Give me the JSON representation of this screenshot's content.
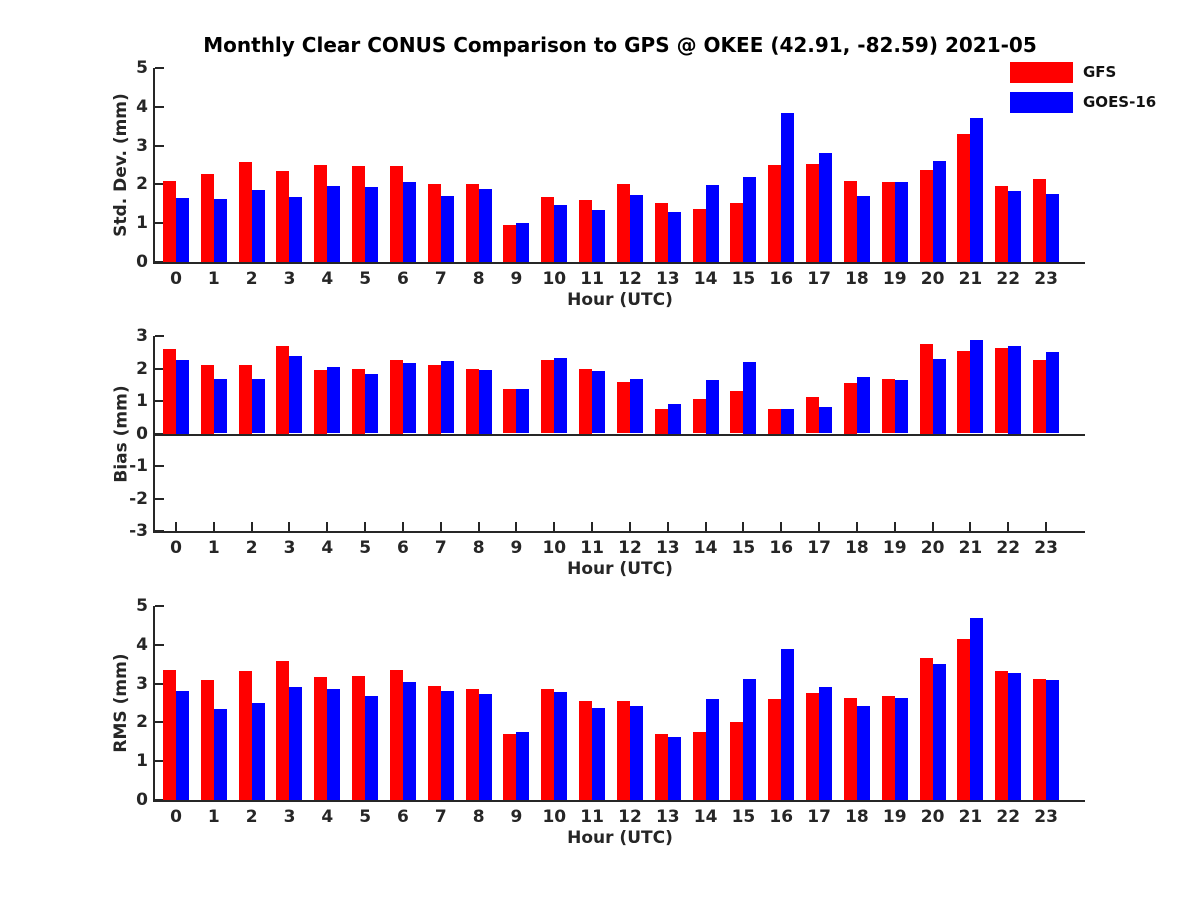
{
  "figure": {
    "title": "Monthly Clear CONUS Comparison to GPS @ OKEE (42.91, -82.59) 2021-05",
    "background": "#ffffff",
    "axis_color": "#262626",
    "text_color": "#262626"
  },
  "legend": {
    "position": "top-right",
    "entries": [
      {
        "label": "GFS",
        "color": "#ff0000"
      },
      {
        "label": "GOES-16",
        "color": "#0000ff"
      }
    ]
  },
  "chart_data": [
    {
      "type": "bar",
      "panel": "std-dev",
      "title": "",
      "xlabel": "Hour (UTC)",
      "ylabel": "Std. Dev. (mm)",
      "ylim": [
        0,
        5
      ],
      "yticks": [
        0,
        1,
        2,
        3,
        4,
        5
      ],
      "grid": false,
      "categories": [
        "0",
        "1",
        "2",
        "3",
        "4",
        "5",
        "6",
        "7",
        "8",
        "9",
        "10",
        "11",
        "12",
        "13",
        "14",
        "15",
        "16",
        "17",
        "18",
        "19",
        "20",
        "21",
        "22",
        "23"
      ],
      "series": [
        {
          "name": "GFS",
          "color": "#ff0000",
          "values": [
            2.1,
            2.26,
            2.57,
            2.35,
            2.5,
            2.47,
            2.47,
            2.02,
            2.01,
            0.95,
            1.68,
            1.59,
            2.0,
            1.52,
            1.37,
            1.53,
            2.5,
            2.52,
            2.09,
            2.05,
            2.38,
            3.29,
            1.96,
            2.13
          ]
        },
        {
          "name": "GOES-16",
          "color": "#0000ff",
          "values": [
            1.65,
            1.62,
            1.85,
            1.68,
            1.97,
            1.93,
            2.07,
            1.7,
            1.87,
            1.0,
            1.48,
            1.33,
            1.72,
            1.3,
            1.99,
            2.18,
            3.85,
            2.82,
            1.7,
            2.06,
            2.61,
            3.7,
            1.83,
            1.76
          ]
        }
      ]
    },
    {
      "type": "bar",
      "panel": "bias",
      "title": "",
      "xlabel": "Hour (UTC)",
      "ylabel": "Bias (mm)",
      "ylim": [
        -3,
        3
      ],
      "yticks": [
        -3,
        -2,
        -1,
        0,
        1,
        2,
        3
      ],
      "grid": false,
      "categories": [
        "0",
        "1",
        "2",
        "3",
        "4",
        "5",
        "6",
        "7",
        "8",
        "9",
        "10",
        "11",
        "12",
        "13",
        "14",
        "15",
        "16",
        "17",
        "18",
        "19",
        "20",
        "21",
        "22",
        "23"
      ],
      "series": [
        {
          "name": "GFS",
          "color": "#ff0000",
          "values": [
            2.6,
            2.1,
            2.1,
            2.7,
            1.95,
            2.0,
            2.25,
            2.1,
            2.0,
            1.38,
            2.27,
            2.0,
            1.57,
            0.75,
            1.06,
            1.32,
            0.75,
            1.12,
            1.55,
            1.69,
            2.75,
            2.54,
            2.63,
            2.27
          ]
        },
        {
          "name": "GOES-16",
          "color": "#0000ff",
          "values": [
            2.25,
            1.68,
            1.68,
            2.38,
            2.06,
            1.82,
            2.18,
            2.22,
            1.95,
            1.38,
            2.33,
            1.93,
            1.68,
            0.9,
            1.65,
            2.2,
            0.75,
            0.82,
            1.73,
            1.66,
            2.3,
            2.88,
            2.7,
            2.52
          ]
        }
      ]
    },
    {
      "type": "bar",
      "panel": "rms",
      "title": "",
      "xlabel": "Hour (UTC)",
      "ylabel": "RMS (mm)",
      "ylim": [
        0,
        5
      ],
      "yticks": [
        0,
        1,
        2,
        3,
        4,
        5
      ],
      "grid": false,
      "categories": [
        "0",
        "1",
        "2",
        "3",
        "4",
        "5",
        "6",
        "7",
        "8",
        "9",
        "10",
        "11",
        "12",
        "13",
        "14",
        "15",
        "16",
        "17",
        "18",
        "19",
        "20",
        "21",
        "22",
        "23"
      ],
      "series": [
        {
          "name": "GFS",
          "color": "#ff0000",
          "values": [
            3.35,
            3.08,
            3.33,
            3.58,
            3.18,
            3.2,
            3.35,
            2.94,
            2.87,
            1.71,
            2.85,
            2.56,
            2.54,
            1.69,
            1.75,
            2.0,
            2.6,
            2.75,
            2.63,
            2.67,
            3.65,
            4.15,
            3.32,
            3.13
          ]
        },
        {
          "name": "GOES-16",
          "color": "#0000ff",
          "values": [
            2.82,
            2.35,
            2.51,
            2.91,
            2.85,
            2.68,
            3.03,
            2.82,
            2.72,
            1.74,
            2.79,
            2.36,
            2.42,
            1.62,
            2.6,
            3.12,
            3.88,
            2.91,
            2.42,
            2.64,
            3.5,
            4.7,
            3.28,
            3.1
          ]
        }
      ]
    }
  ]
}
